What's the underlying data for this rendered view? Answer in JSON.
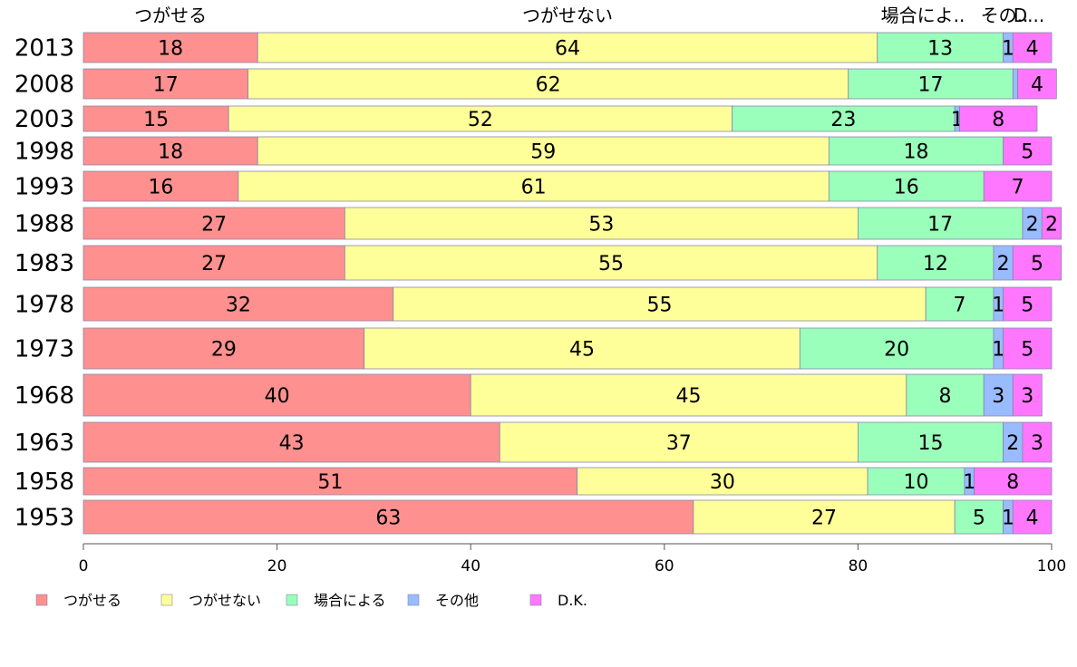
{
  "chart_data": {
    "type": "bar",
    "orientation": "horizontal",
    "stacked": true,
    "categories": [
      "2013",
      "2008",
      "2003",
      "1998",
      "1993",
      "1988",
      "1983",
      "1978",
      "1973",
      "1968",
      "1963",
      "1958",
      "1953"
    ],
    "series": [
      {
        "name": "つがせる",
        "color": "#ff9090",
        "values": [
          18,
          17,
          15,
          18,
          16,
          27,
          27,
          32,
          29,
          40,
          43,
          51,
          63
        ]
      },
      {
        "name": "つがせない",
        "color": "#ffff99",
        "values": [
          64,
          62,
          52,
          59,
          61,
          53,
          55,
          55,
          45,
          45,
          37,
          30,
          27
        ]
      },
      {
        "name": "場合による",
        "color": "#99ffbb",
        "values": [
          13,
          17,
          23,
          18,
          16,
          17,
          12,
          7,
          20,
          8,
          15,
          10,
          5
        ]
      },
      {
        "name": "その他",
        "color": "#99bbff",
        "values": [
          1,
          0.5,
          0.5,
          0,
          0,
          2,
          2,
          1,
          1,
          3,
          2,
          1,
          1
        ]
      },
      {
        "name": "D.K.",
        "color": "#ff77ff",
        "values": [
          4,
          4,
          8,
          5,
          7,
          2,
          5,
          5,
          5,
          3,
          3,
          8,
          4
        ]
      }
    ],
    "data_labels": [
      [
        "18",
        "64",
        "13",
        "1",
        "4"
      ],
      [
        "17",
        "62",
        "17",
        "",
        "4"
      ],
      [
        "15",
        "52",
        "23",
        "1",
        "8"
      ],
      [
        "18",
        "59",
        "18",
        "",
        "5"
      ],
      [
        "16",
        "61",
        "16",
        "",
        "7"
      ],
      [
        "27",
        "53",
        "17",
        "2",
        "2"
      ],
      [
        "27",
        "55",
        "12",
        "2",
        "5"
      ],
      [
        "32",
        "55",
        "7",
        "1",
        "5"
      ],
      [
        "29",
        "45",
        "20",
        "1",
        "5"
      ],
      [
        "40",
        "45",
        "8",
        "3",
        "3"
      ],
      [
        "43",
        "37",
        "15",
        "2",
        "3"
      ],
      [
        "51",
        "30",
        "10",
        "1",
        "8"
      ],
      [
        "63",
        "27",
        "5",
        "1",
        "4"
      ]
    ],
    "top_labels": [
      "つがせる",
      "つがせない",
      "場合によ..",
      "その..",
      "D..."
    ],
    "xlim": [
      0,
      100
    ],
    "xticks": [
      "0",
      "20",
      "40",
      "60",
      "80",
      "100"
    ],
    "grid": false,
    "legend_position": "bottom-left"
  }
}
